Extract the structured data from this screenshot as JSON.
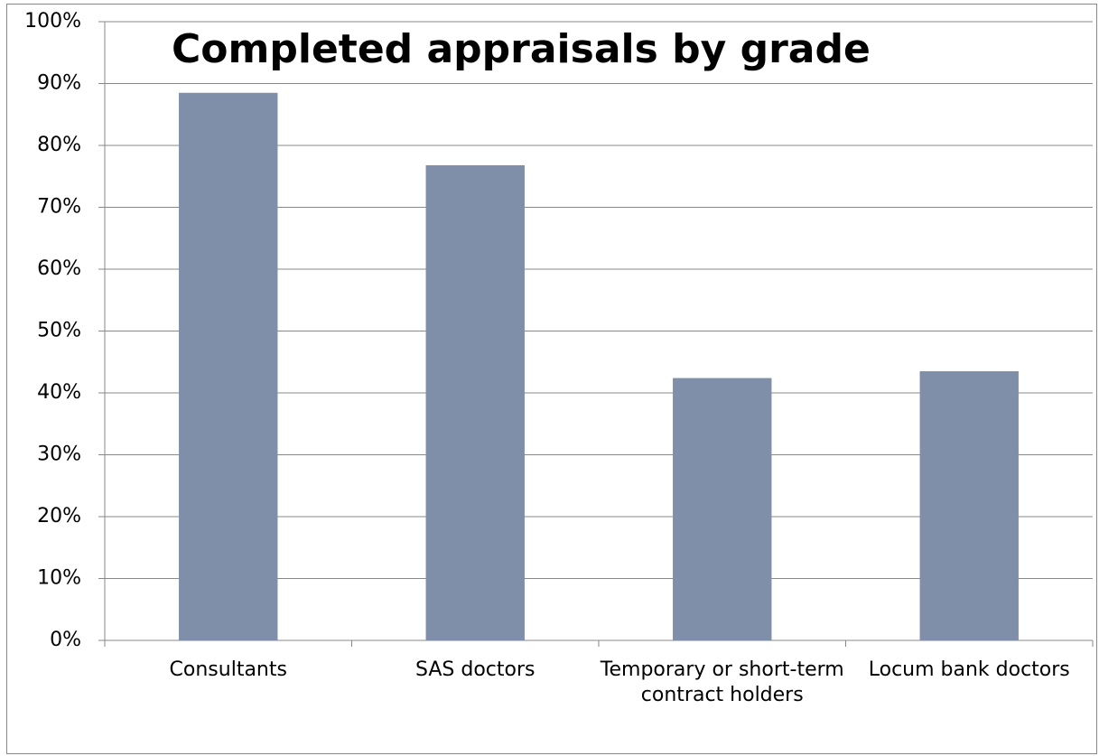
{
  "chart_data": {
    "type": "bar",
    "title": "Completed appraisals by grade",
    "categories": [
      "Consultants",
      "SAS doctors",
      "Temporary or short-term contract holders",
      "Locum bank doctors"
    ],
    "values": [
      88.5,
      76.8,
      42.4,
      43.5
    ],
    "color": "#7f8fa9",
    "ylim": [
      0,
      100
    ],
    "yticks": [
      {
        "value": 0,
        "label": "0%"
      },
      {
        "value": 10,
        "label": "10%"
      },
      {
        "value": 20,
        "label": "20%"
      },
      {
        "value": 30,
        "label": "30%"
      },
      {
        "value": 40,
        "label": "40%"
      },
      {
        "value": 50,
        "label": "50%"
      },
      {
        "value": 60,
        "label": "60%"
      },
      {
        "value": 70,
        "label": "70%"
      },
      {
        "value": 80,
        "label": "80%"
      },
      {
        "value": 90,
        "label": "90%"
      },
      {
        "value": 100,
        "label": "100%"
      }
    ],
    "grid": true
  }
}
